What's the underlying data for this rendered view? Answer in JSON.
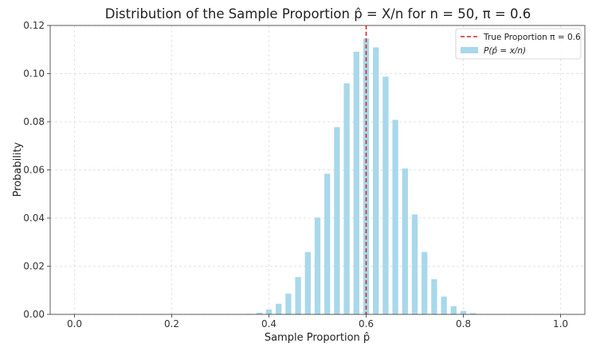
{
  "chart_data": {
    "type": "bar",
    "title": "Distribution of the Sample Proportion p̂ = X/n for n = 50, π = 0.6",
    "xlabel": "Sample Proportion p̂",
    "ylabel": "Probability",
    "xlim": [
      -0.05,
      1.05
    ],
    "ylim": [
      0,
      0.12
    ],
    "x_ticks": [
      "0.0",
      "0.2",
      "0.4",
      "0.6",
      "0.8",
      "1.0"
    ],
    "y_ticks": [
      "0.00",
      "0.02",
      "0.04",
      "0.06",
      "0.08",
      "0.10",
      "0.12"
    ],
    "grid": true,
    "legend_position": "top-right",
    "bar_color": "#a8d8ea",
    "line_color": "#d62728",
    "true_proportion": 0.6,
    "legend": [
      {
        "label": "True Proportion π = 0.6",
        "kind": "dashed-line"
      },
      {
        "label": "P(p̂ = x/n)",
        "kind": "bar"
      }
    ],
    "x": [
      0.36,
      0.38,
      0.4,
      0.42,
      0.44,
      0.46,
      0.48,
      0.5,
      0.52,
      0.54,
      0.56,
      0.58,
      0.6,
      0.62,
      0.64,
      0.66,
      0.68,
      0.7,
      0.72,
      0.74,
      0.76,
      0.78,
      0.8,
      0.82
    ],
    "values": [
      0.0002,
      0.0007,
      0.002,
      0.0044,
      0.0086,
      0.0155,
      0.0259,
      0.0402,
      0.0584,
      0.0778,
      0.096,
      0.1091,
      0.1146,
      0.1109,
      0.0987,
      0.0808,
      0.0606,
      0.0415,
      0.0259,
      0.0146,
      0.0074,
      0.0034,
      0.0014,
      0.0005
    ]
  }
}
